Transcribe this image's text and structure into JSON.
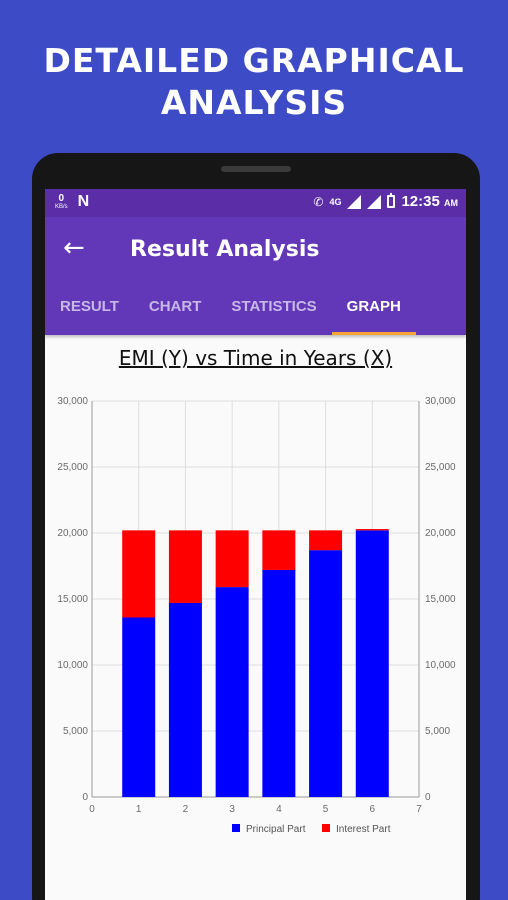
{
  "promo": {
    "headline_line1": "DETAILED GRAPHICAL",
    "headline_line2": "ANALYSIS"
  },
  "status_bar": {
    "net_speed": "0",
    "net_unit": "KB/s",
    "network_label": "4G",
    "time": "12:35",
    "ampm": "AM"
  },
  "app_bar": {
    "title": "Result Analysis",
    "back_icon": "arrow-back-icon"
  },
  "tabs": [
    {
      "label": "RESULT",
      "active": false
    },
    {
      "label": "CHART",
      "active": false
    },
    {
      "label": "STATISTICS",
      "active": false
    },
    {
      "label": "GRAPH",
      "active": true
    }
  ],
  "colors": {
    "principal": "#0000ff",
    "interest": "#ff0000",
    "accent": "#f4a534",
    "bar": "#6338b8"
  },
  "chart_data": {
    "type": "bar",
    "title": "EMI (Y) vs Time in Years (X)",
    "stacked": true,
    "categories": [
      "1",
      "2",
      "3",
      "4",
      "5",
      "6"
    ],
    "series": [
      {
        "name": "Principal Part",
        "values": [
          13600,
          14700,
          15900,
          17200,
          18700,
          20200
        ]
      },
      {
        "name": "Interest Part",
        "values": [
          6600,
          5500,
          4300,
          3000,
          1500,
          100
        ]
      }
    ],
    "xlim": [
      0,
      7
    ],
    "x_ticks": [
      "0",
      "1",
      "2",
      "3",
      "4",
      "5",
      "6",
      "7"
    ],
    "ylim": [
      0,
      30000
    ],
    "y_ticks": [
      "0",
      "5,000",
      "10,000",
      "15,000",
      "20,000",
      "25,000",
      "30,000"
    ],
    "right_axis": true,
    "grid": true,
    "legend_position": "bottom-right"
  }
}
